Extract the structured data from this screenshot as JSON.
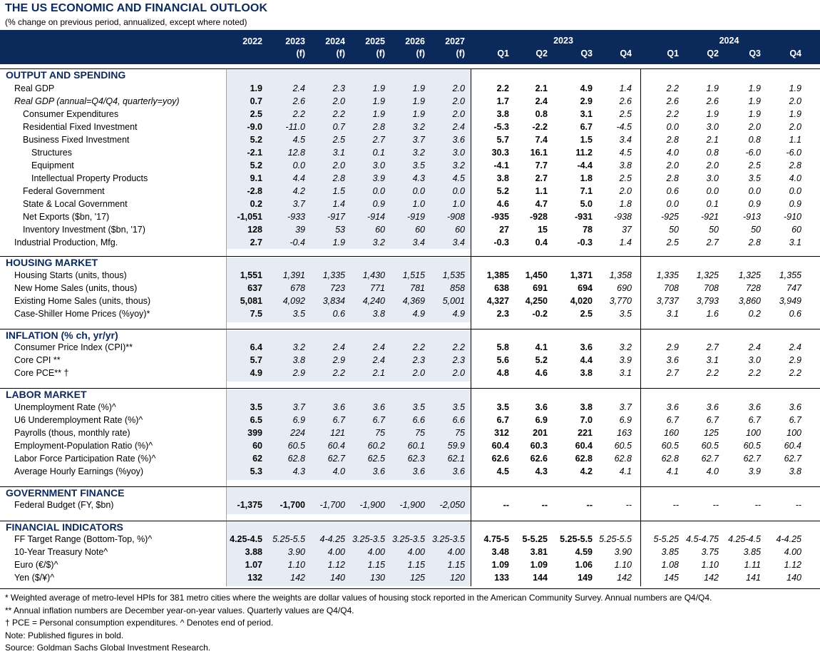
{
  "title": "THE US ECONOMIC AND FINANCIAL OUTLOOK",
  "subtitle": "(% change on previous period, annualized, except where noted)",
  "colors": {
    "navy": "#0b2a5b",
    "shade": "#e6ebf4"
  },
  "header": {
    "annual": [
      [
        "2022",
        ""
      ],
      [
        "2023",
        "(f)"
      ],
      [
        "2024",
        "(f)"
      ],
      [
        "2025",
        "(f)"
      ],
      [
        "2026",
        "(f)"
      ],
      [
        "2027",
        "(f)"
      ]
    ],
    "group2023": "2023",
    "group2024": "2024",
    "quarters": [
      "Q1",
      "Q2",
      "Q3",
      "Q4",
      "Q1",
      "Q2",
      "Q3",
      "Q4"
    ]
  },
  "sections": [
    {
      "title": "OUTPUT AND SPENDING",
      "rows": [
        {
          "label": "Real GDP",
          "indent": 0,
          "vals": [
            "1.9",
            "2.4",
            "2.3",
            "1.9",
            "1.9",
            "2.0",
            "2.2",
            "2.1",
            "4.9",
            "1.4",
            "2.2",
            "1.9",
            "1.9",
            "1.9"
          ]
        },
        {
          "label": "Real GDP (annual=Q4/Q4, quarterly=yoy)",
          "indent": 0,
          "italicLabel": true,
          "vals": [
            "0.7",
            "2.6",
            "2.0",
            "1.9",
            "1.9",
            "2.0",
            "1.7",
            "2.4",
            "2.9",
            "2.6",
            "2.6",
            "2.6",
            "1.9",
            "2.0"
          ]
        },
        {
          "label": "Consumer Expenditures",
          "indent": 1,
          "vals": [
            "2.5",
            "2.2",
            "2.2",
            "1.9",
            "1.9",
            "2.0",
            "3.8",
            "0.8",
            "3.1",
            "2.5",
            "2.2",
            "1.9",
            "1.9",
            "1.9"
          ]
        },
        {
          "label": "Residential Fixed Investment",
          "indent": 1,
          "vals": [
            "-9.0",
            "-11.0",
            "0.7",
            "2.8",
            "3.2",
            "2.4",
            "-5.3",
            "-2.2",
            "6.7",
            "-4.5",
            "0.0",
            "3.0",
            "2.0",
            "2.0"
          ]
        },
        {
          "label": "Business Fixed Investment",
          "indent": 1,
          "vals": [
            "5.2",
            "4.5",
            "2.5",
            "2.7",
            "3.7",
            "3.6",
            "5.7",
            "7.4",
            "1.5",
            "3.4",
            "2.8",
            "2.1",
            "0.8",
            "1.1"
          ]
        },
        {
          "label": "Structures",
          "indent": 2,
          "vals": [
            "-2.1",
            "12.8",
            "3.1",
            "0.1",
            "3.2",
            "3.0",
            "30.3",
            "16.1",
            "11.2",
            "4.5",
            "4.0",
            "0.8",
            "-6.0",
            "-6.0"
          ]
        },
        {
          "label": "Equipment",
          "indent": 2,
          "vals": [
            "5.2",
            "0.0",
            "2.0",
            "3.0",
            "3.5",
            "3.2",
            "-4.1",
            "7.7",
            "-4.4",
            "3.8",
            "2.0",
            "2.0",
            "2.5",
            "2.8"
          ]
        },
        {
          "label": "Intellectual Property Products",
          "indent": 2,
          "vals": [
            "9.1",
            "4.4",
            "2.8",
            "3.9",
            "4.3",
            "4.5",
            "3.8",
            "2.7",
            "1.8",
            "2.5",
            "2.8",
            "3.0",
            "3.5",
            "4.0"
          ]
        },
        {
          "label": "Federal Government",
          "indent": 1,
          "vals": [
            "-2.8",
            "4.2",
            "1.5",
            "0.0",
            "0.0",
            "0.0",
            "5.2",
            "1.1",
            "7.1",
            "2.0",
            "0.6",
            "0.0",
            "0.0",
            "0.0"
          ]
        },
        {
          "label": "State & Local Government",
          "indent": 1,
          "vals": [
            "0.2",
            "3.7",
            "1.4",
            "0.9",
            "1.0",
            "1.0",
            "4.6",
            "4.7",
            "5.0",
            "1.8",
            "0.0",
            "0.1",
            "0.9",
            "0.9"
          ]
        },
        {
          "label": "Net Exports ($bn, '17)",
          "indent": 1,
          "vals": [
            "-1,051",
            "-933",
            "-917",
            "-914",
            "-919",
            "-908",
            "-935",
            "-928",
            "-931",
            "-938",
            "-925",
            "-921",
            "-913",
            "-910"
          ]
        },
        {
          "label": "Inventory Investment ($bn, '17)",
          "indent": 1,
          "vals": [
            "128",
            "39",
            "53",
            "60",
            "60",
            "60",
            "27",
            "15",
            "78",
            "37",
            "50",
            "50",
            "50",
            "60"
          ]
        },
        {
          "label": "Industrial Production, Mfg.",
          "indent": 0,
          "vals": [
            "2.7",
            "-0.4",
            "1.9",
            "3.2",
            "3.4",
            "3.4",
            "-0.3",
            "0.4",
            "-0.3",
            "1.4",
            "2.5",
            "2.7",
            "2.8",
            "3.1"
          ]
        }
      ]
    },
    {
      "title": "HOUSING MARKET",
      "rows": [
        {
          "label": "Housing Starts (units, thous)",
          "indent": 0,
          "vals": [
            "1,551",
            "1,391",
            "1,335",
            "1,430",
            "1,515",
            "1,535",
            "1,385",
            "1,450",
            "1,371",
            "1,358",
            "1,335",
            "1,325",
            "1,325",
            "1,355"
          ]
        },
        {
          "label": "New Home Sales (units, thous)",
          "indent": 0,
          "vals": [
            "637",
            "678",
            "723",
            "771",
            "781",
            "858",
            "638",
            "691",
            "694",
            "690",
            "708",
            "708",
            "728",
            "747"
          ]
        },
        {
          "label": "Existing Home Sales (units, thous)",
          "indent": 0,
          "vals": [
            "5,081",
            "4,092",
            "3,834",
            "4,240",
            "4,369",
            "5,001",
            "4,327",
            "4,250",
            "4,020",
            "3,770",
            "3,737",
            "3,793",
            "3,860",
            "3,949"
          ]
        },
        {
          "label": "Case-Shiller Home Prices (%yoy)*",
          "indent": 0,
          "vals": [
            "7.5",
            "3.5",
            "0.6",
            "3.8",
            "4.9",
            "4.9",
            "2.3",
            "-0.2",
            "2.5",
            "3.5",
            "3.1",
            "1.6",
            "0.2",
            "0.6"
          ]
        }
      ]
    },
    {
      "title": "INFLATION (% ch, yr/yr)",
      "rows": [
        {
          "label": "Consumer Price Index (CPI)**",
          "indent": 0,
          "vals": [
            "6.4",
            "3.2",
            "2.4",
            "2.4",
            "2.2",
            "2.2",
            "5.8",
            "4.1",
            "3.6",
            "3.2",
            "2.9",
            "2.7",
            "2.4",
            "2.4"
          ]
        },
        {
          "label": "Core CPI **",
          "indent": 0,
          "vals": [
            "5.7",
            "3.8",
            "2.9",
            "2.4",
            "2.3",
            "2.3",
            "5.6",
            "5.2",
            "4.4",
            "3.9",
            "3.6",
            "3.1",
            "3.0",
            "2.9"
          ]
        },
        {
          "label": "Core PCE** †",
          "indent": 0,
          "vals": [
            "4.9",
            "2.9",
            "2.2",
            "2.1",
            "2.0",
            "2.0",
            "4.8",
            "4.6",
            "3.8",
            "3.1",
            "2.7",
            "2.2",
            "2.2",
            "2.2"
          ]
        }
      ]
    },
    {
      "title": "LABOR MARKET",
      "rows": [
        {
          "label": "Unemployment Rate (%)^",
          "indent": 0,
          "vals": [
            "3.5",
            "3.7",
            "3.6",
            "3.6",
            "3.5",
            "3.5",
            "3.5",
            "3.6",
            "3.8",
            "3.7",
            "3.6",
            "3.6",
            "3.6",
            "3.6"
          ]
        },
        {
          "label": "U6 Underemployment Rate (%)^",
          "indent": 0,
          "vals": [
            "6.5",
            "6.9",
            "6.7",
            "6.7",
            "6.6",
            "6.6",
            "6.7",
            "6.9",
            "7.0",
            "6.9",
            "6.7",
            "6.7",
            "6.7",
            "6.7"
          ]
        },
        {
          "label": "Payrolls (thous, monthly rate)",
          "indent": 0,
          "vals": [
            "399",
            "224",
            "121",
            "75",
            "75",
            "75",
            "312",
            "201",
            "221",
            "163",
            "160",
            "125",
            "100",
            "100"
          ]
        },
        {
          "label": "Employment-Population Ratio (%)^",
          "indent": 0,
          "vals": [
            "60",
            "60.5",
            "60.4",
            "60.2",
            "60.1",
            "59.9",
            "60.4",
            "60.3",
            "60.4",
            "60.5",
            "60.5",
            "60.5",
            "60.5",
            "60.4"
          ]
        },
        {
          "label": "Labor Force Participation Rate (%)^",
          "indent": 0,
          "vals": [
            "62",
            "62.8",
            "62.7",
            "62.5",
            "62.3",
            "62.1",
            "62.6",
            "62.6",
            "62.8",
            "62.8",
            "62.8",
            "62.7",
            "62.7",
            "62.7"
          ]
        },
        {
          "label": "Average Hourly Earnings (%yoy)",
          "indent": 0,
          "vals": [
            "5.3",
            "4.3",
            "4.0",
            "3.6",
            "3.6",
            "3.6",
            "4.5",
            "4.3",
            "4.2",
            "4.1",
            "4.1",
            "4.0",
            "3.9",
            "3.8"
          ]
        }
      ]
    },
    {
      "title": "GOVERNMENT FINANCE",
      "rows": [
        {
          "label": "Federal Budget (FY, $bn)",
          "indent": 0,
          "vals": [
            "-1,375",
            "-1,700",
            "-1,700",
            "-1,900",
            "-1,900",
            "-2,050",
            "--",
            "--",
            "--",
            "--",
            "--",
            "--",
            "--",
            "--"
          ],
          "bold2": true
        }
      ]
    },
    {
      "title": "FINANCIAL INDICATORS",
      "rows": [
        {
          "label": "FF Target Range (Bottom-Top, %)^",
          "indent": 0,
          "vals": [
            "4.25-4.5",
            "5.25-5.5",
            "4-4.25",
            "3.25-3.5",
            "3.25-3.5",
            "3.25-3.5",
            "4.75-5",
            "5-5.25",
            "5.25-5.5",
            "5.25-5.5",
            "5-5.25",
            "4.5-4.75",
            "4.25-4.5",
            "4-4.25"
          ]
        },
        {
          "label": "10-Year Treasury Note^",
          "indent": 0,
          "vals": [
            "3.88",
            "3.90",
            "4.00",
            "4.00",
            "4.00",
            "4.00",
            "3.48",
            "3.81",
            "4.59",
            "3.90",
            "3.85",
            "3.75",
            "3.85",
            "4.00"
          ]
        },
        {
          "label": "Euro (€/$)^",
          "indent": 0,
          "vals": [
            "1.07",
            "1.10",
            "1.12",
            "1.15",
            "1.15",
            "1.15",
            "1.09",
            "1.09",
            "1.06",
            "1.10",
            "1.08",
            "1.10",
            "1.11",
            "1.12"
          ]
        },
        {
          "label": "Yen ($/¥)^",
          "indent": 0,
          "vals": [
            "132",
            "142",
            "140",
            "130",
            "125",
            "120",
            "133",
            "144",
            "149",
            "142",
            "145",
            "142",
            "141",
            "140"
          ]
        }
      ]
    }
  ],
  "footnotes": [
    "* Weighted average of metro-level HPIs for 381 metro cities where the weights are dollar values of housing stock reported in the American Community Survey. Annual numbers are Q4/Q4.",
    "** Annual inflation numbers are December year-on-year values. Quarterly values are Q4/Q4.",
    "† PCE = Personal consumption expenditures.  ^ Denotes end of period.",
    "Note: Published figures in bold.",
    "Source: Goldman Sachs Global Investment Research."
  ]
}
